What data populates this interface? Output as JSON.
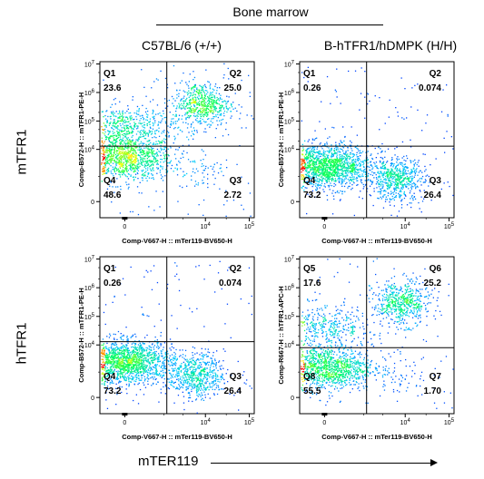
{
  "header": {
    "title": "Bone marrow",
    "col1": "C57BL/6 (+/+)",
    "col2": "B-hTFR1/hDMPK (H/H)"
  },
  "rows": {
    "row1": "mTFR1",
    "row2": "hTFR1"
  },
  "x_axis_title": "mTER119",
  "colors": {
    "high": "#ff0000",
    "mid_high": "#ffff00",
    "mid": "#00ff60",
    "low": "#0000ff",
    "gate": "#000000"
  },
  "chart_data": [
    {
      "type": "scatter",
      "subtype": "flow-cytometry-density-plot",
      "panel": "top-left",
      "xlabel": "Comp-V667-H :: mTer119-BV650-H",
      "ylabel": "Comp-B572-H :: mTFR1-PE-H",
      "x_scale": "biexponential",
      "y_scale": "biexponential",
      "xticks": [
        "0",
        "10^4",
        "10^5"
      ],
      "yticks": [
        "0",
        "10^4",
        "10^5",
        "10^6",
        "10^7"
      ],
      "gate_x": 1200,
      "gate_y": 13000,
      "quadrants": [
        {
          "label": "Q1",
          "value": "23.6",
          "position": "top-left"
        },
        {
          "label": "Q2",
          "value": "25.0",
          "position": "top-right"
        },
        {
          "label": "Q3",
          "value": "2.72",
          "position": "bottom-right"
        },
        {
          "label": "Q4",
          "value": "48.6",
          "position": "bottom-left"
        }
      ],
      "populations": [
        {
          "x": 0,
          "y": 5000,
          "weight": 0.48
        },
        {
          "x": 0,
          "y": 60000,
          "weight": 0.24
        },
        {
          "x": 8000,
          "y": 400000,
          "weight": 0.25
        },
        {
          "x": 8000,
          "y": 1500,
          "weight": 0.03
        }
      ]
    },
    {
      "type": "scatter",
      "subtype": "flow-cytometry-density-plot",
      "panel": "top-right",
      "xlabel": "Comp-V667-H :: mTer119-BV650-H",
      "ylabel": "Comp-B572-H :: mTFR1-PE-H",
      "x_scale": "biexponential",
      "y_scale": "biexponential",
      "xticks": [
        "0",
        "10^4",
        "10^5"
      ],
      "yticks": [
        "0",
        "10^4",
        "10^5",
        "10^6",
        "10^7"
      ],
      "gate_x": 1200,
      "gate_y": 13000,
      "quadrants": [
        {
          "label": "Q1",
          "value": "0.26",
          "position": "top-left"
        },
        {
          "label": "Q2",
          "value": "0.074",
          "position": "top-right"
        },
        {
          "label": "Q3",
          "value": "26.4",
          "position": "bottom-right"
        },
        {
          "label": "Q4",
          "value": "73.2",
          "position": "bottom-left"
        }
      ],
      "populations": [
        {
          "x": 0,
          "y": 2500,
          "weight": 0.73
        },
        {
          "x": 6000,
          "y": 800,
          "weight": 0.26
        }
      ]
    },
    {
      "type": "scatter",
      "subtype": "flow-cytometry-density-plot",
      "panel": "bottom-left",
      "xlabel": "Comp-V667-H :: mTer119-BV650-H",
      "ylabel": "Comp-B572-H :: mTFR1-PE-H",
      "x_scale": "biexponential",
      "y_scale": "biexponential",
      "xticks": [
        "0",
        "10^4",
        "10^5"
      ],
      "yticks": [
        "0",
        "10^4",
        "10^5",
        "10^6",
        "10^7"
      ],
      "gate_x": 1200,
      "gate_y": 13000,
      "quadrants": [
        {
          "label": "Q1",
          "value": "0.26",
          "position": "top-left"
        },
        {
          "label": "Q2",
          "value": "0.074",
          "position": "top-right"
        },
        {
          "label": "Q3",
          "value": "26.4",
          "position": "bottom-right"
        },
        {
          "label": "Q4",
          "value": "73.2",
          "position": "bottom-left"
        }
      ],
      "populations": [
        {
          "x": 0,
          "y": 2500,
          "weight": 0.73
        },
        {
          "x": 6000,
          "y": 800,
          "weight": 0.26
        }
      ]
    },
    {
      "type": "scatter",
      "subtype": "flow-cytometry-density-plot",
      "panel": "bottom-right",
      "xlabel": "Comp-V667-H :: mTer119-BV650-H",
      "ylabel": "Comp-R667-H :: hTFR1-APC-H",
      "x_scale": "biexponential",
      "y_scale": "biexponential",
      "xticks": [
        "0",
        "10^4",
        "10^5"
      ],
      "yticks": [
        "0",
        "10^4",
        "10^5",
        "10^6",
        "10^7"
      ],
      "gate_x": 1200,
      "gate_y": 8000,
      "quadrants": [
        {
          "label": "Q5",
          "value": "17.6",
          "position": "top-left"
        },
        {
          "label": "Q6",
          "value": "25.2",
          "position": "top-right"
        },
        {
          "label": "Q7",
          "value": "1.70",
          "position": "bottom-right"
        },
        {
          "label": "Q8",
          "value": "55.5",
          "position": "bottom-left"
        }
      ],
      "populations": [
        {
          "x": 0,
          "y": 1500,
          "weight": 0.55
        },
        {
          "x": 0,
          "y": 40000,
          "weight": 0.18
        },
        {
          "x": 8000,
          "y": 300000,
          "weight": 0.25
        },
        {
          "x": 8000,
          "y": 1000,
          "weight": 0.02
        }
      ]
    }
  ]
}
